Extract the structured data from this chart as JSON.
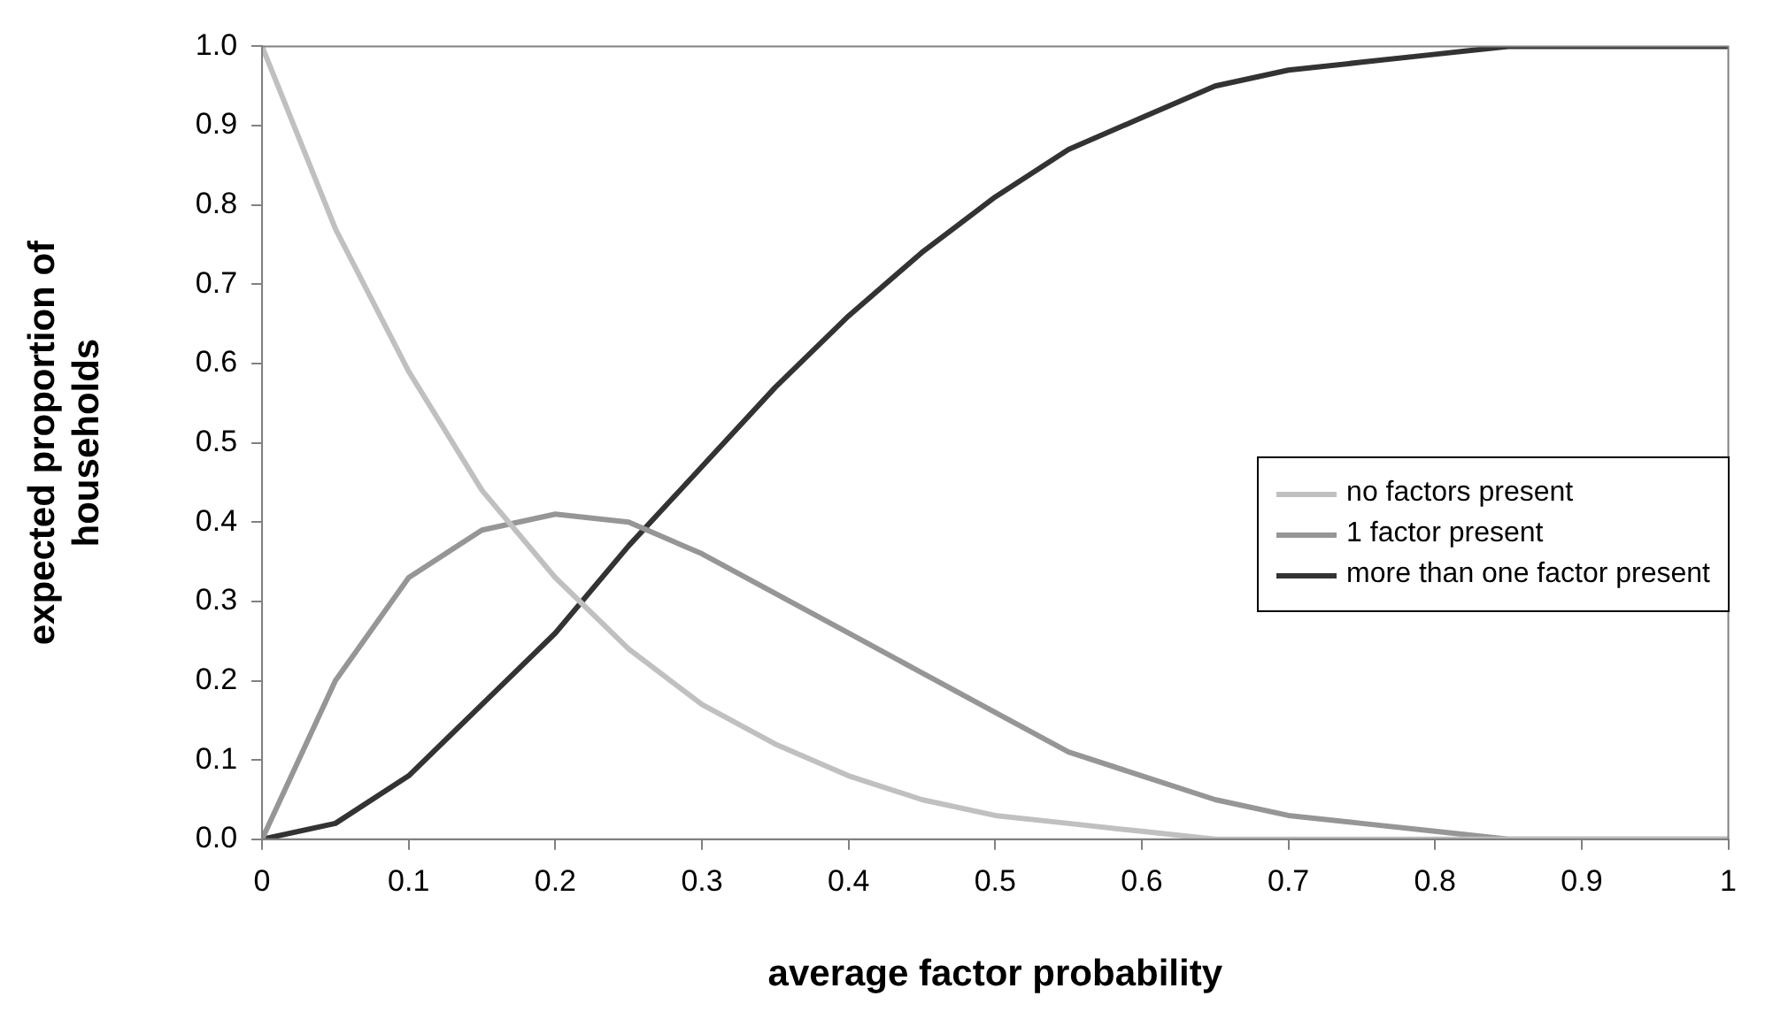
{
  "chart_data": {
    "type": "line",
    "xlabel": "average factor probability",
    "ylabel": "expected proportion of households",
    "x": [
      0,
      0.05,
      0.1,
      0.15,
      0.2,
      0.25,
      0.3,
      0.35,
      0.4,
      0.45,
      0.5,
      0.55,
      0.6,
      0.65,
      0.7,
      0.75,
      0.8,
      0.85,
      0.9,
      0.95,
      1
    ],
    "series": [
      {
        "name": "no factors present",
        "color": "#c0c0c0",
        "values": [
          1,
          0.77,
          0.59,
          0.44,
          0.33,
          0.24,
          0.17,
          0.12,
          0.08,
          0.05,
          0.03,
          0.02,
          0.01,
          0,
          0,
          0,
          0,
          0,
          0,
          0,
          0
        ]
      },
      {
        "name": "1 factor present",
        "color": "#969696",
        "values": [
          0,
          0.2,
          0.33,
          0.39,
          0.41,
          0.4,
          0.36,
          0.31,
          0.26,
          0.21,
          0.16,
          0.11,
          0.08,
          0.05,
          0.03,
          0.02,
          0.01,
          0,
          0,
          0,
          0
        ]
      },
      {
        "name": "more than one factor present",
        "color": "#333333",
        "values": [
          0,
          0.02,
          0.08,
          0.17,
          0.26,
          0.37,
          0.47,
          0.57,
          0.66,
          0.74,
          0.81,
          0.87,
          0.91,
          0.95,
          0.97,
          0.98,
          0.99,
          1,
          1,
          1,
          1
        ]
      }
    ],
    "xlim": [
      0,
      1
    ],
    "xticks": [
      0,
      0.1,
      0.2,
      0.3,
      0.4,
      0.5,
      0.6,
      0.7,
      0.8,
      0.9,
      1
    ],
    "ylim": [
      0,
      1
    ],
    "yticks": [
      {
        "value": 0,
        "label": "0.0"
      },
      {
        "value": 0.1,
        "label": "0.1"
      },
      {
        "value": 0.2,
        "label": "0.2"
      },
      {
        "value": 0.3,
        "label": "0.3"
      },
      {
        "value": 0.4,
        "label": "0.4"
      },
      {
        "value": 0.5,
        "label": "0.5"
      },
      {
        "value": 0.6,
        "label": "0.6"
      },
      {
        "value": 0.7,
        "label": "0.7"
      },
      {
        "value": 0.8,
        "label": "0.8"
      },
      {
        "value": 0.9,
        "label": "0.9"
      },
      {
        "value": 1,
        "label": "1.0"
      }
    ],
    "grid": false,
    "legend": "right",
    "marker": "none",
    "line_style": "solid"
  }
}
